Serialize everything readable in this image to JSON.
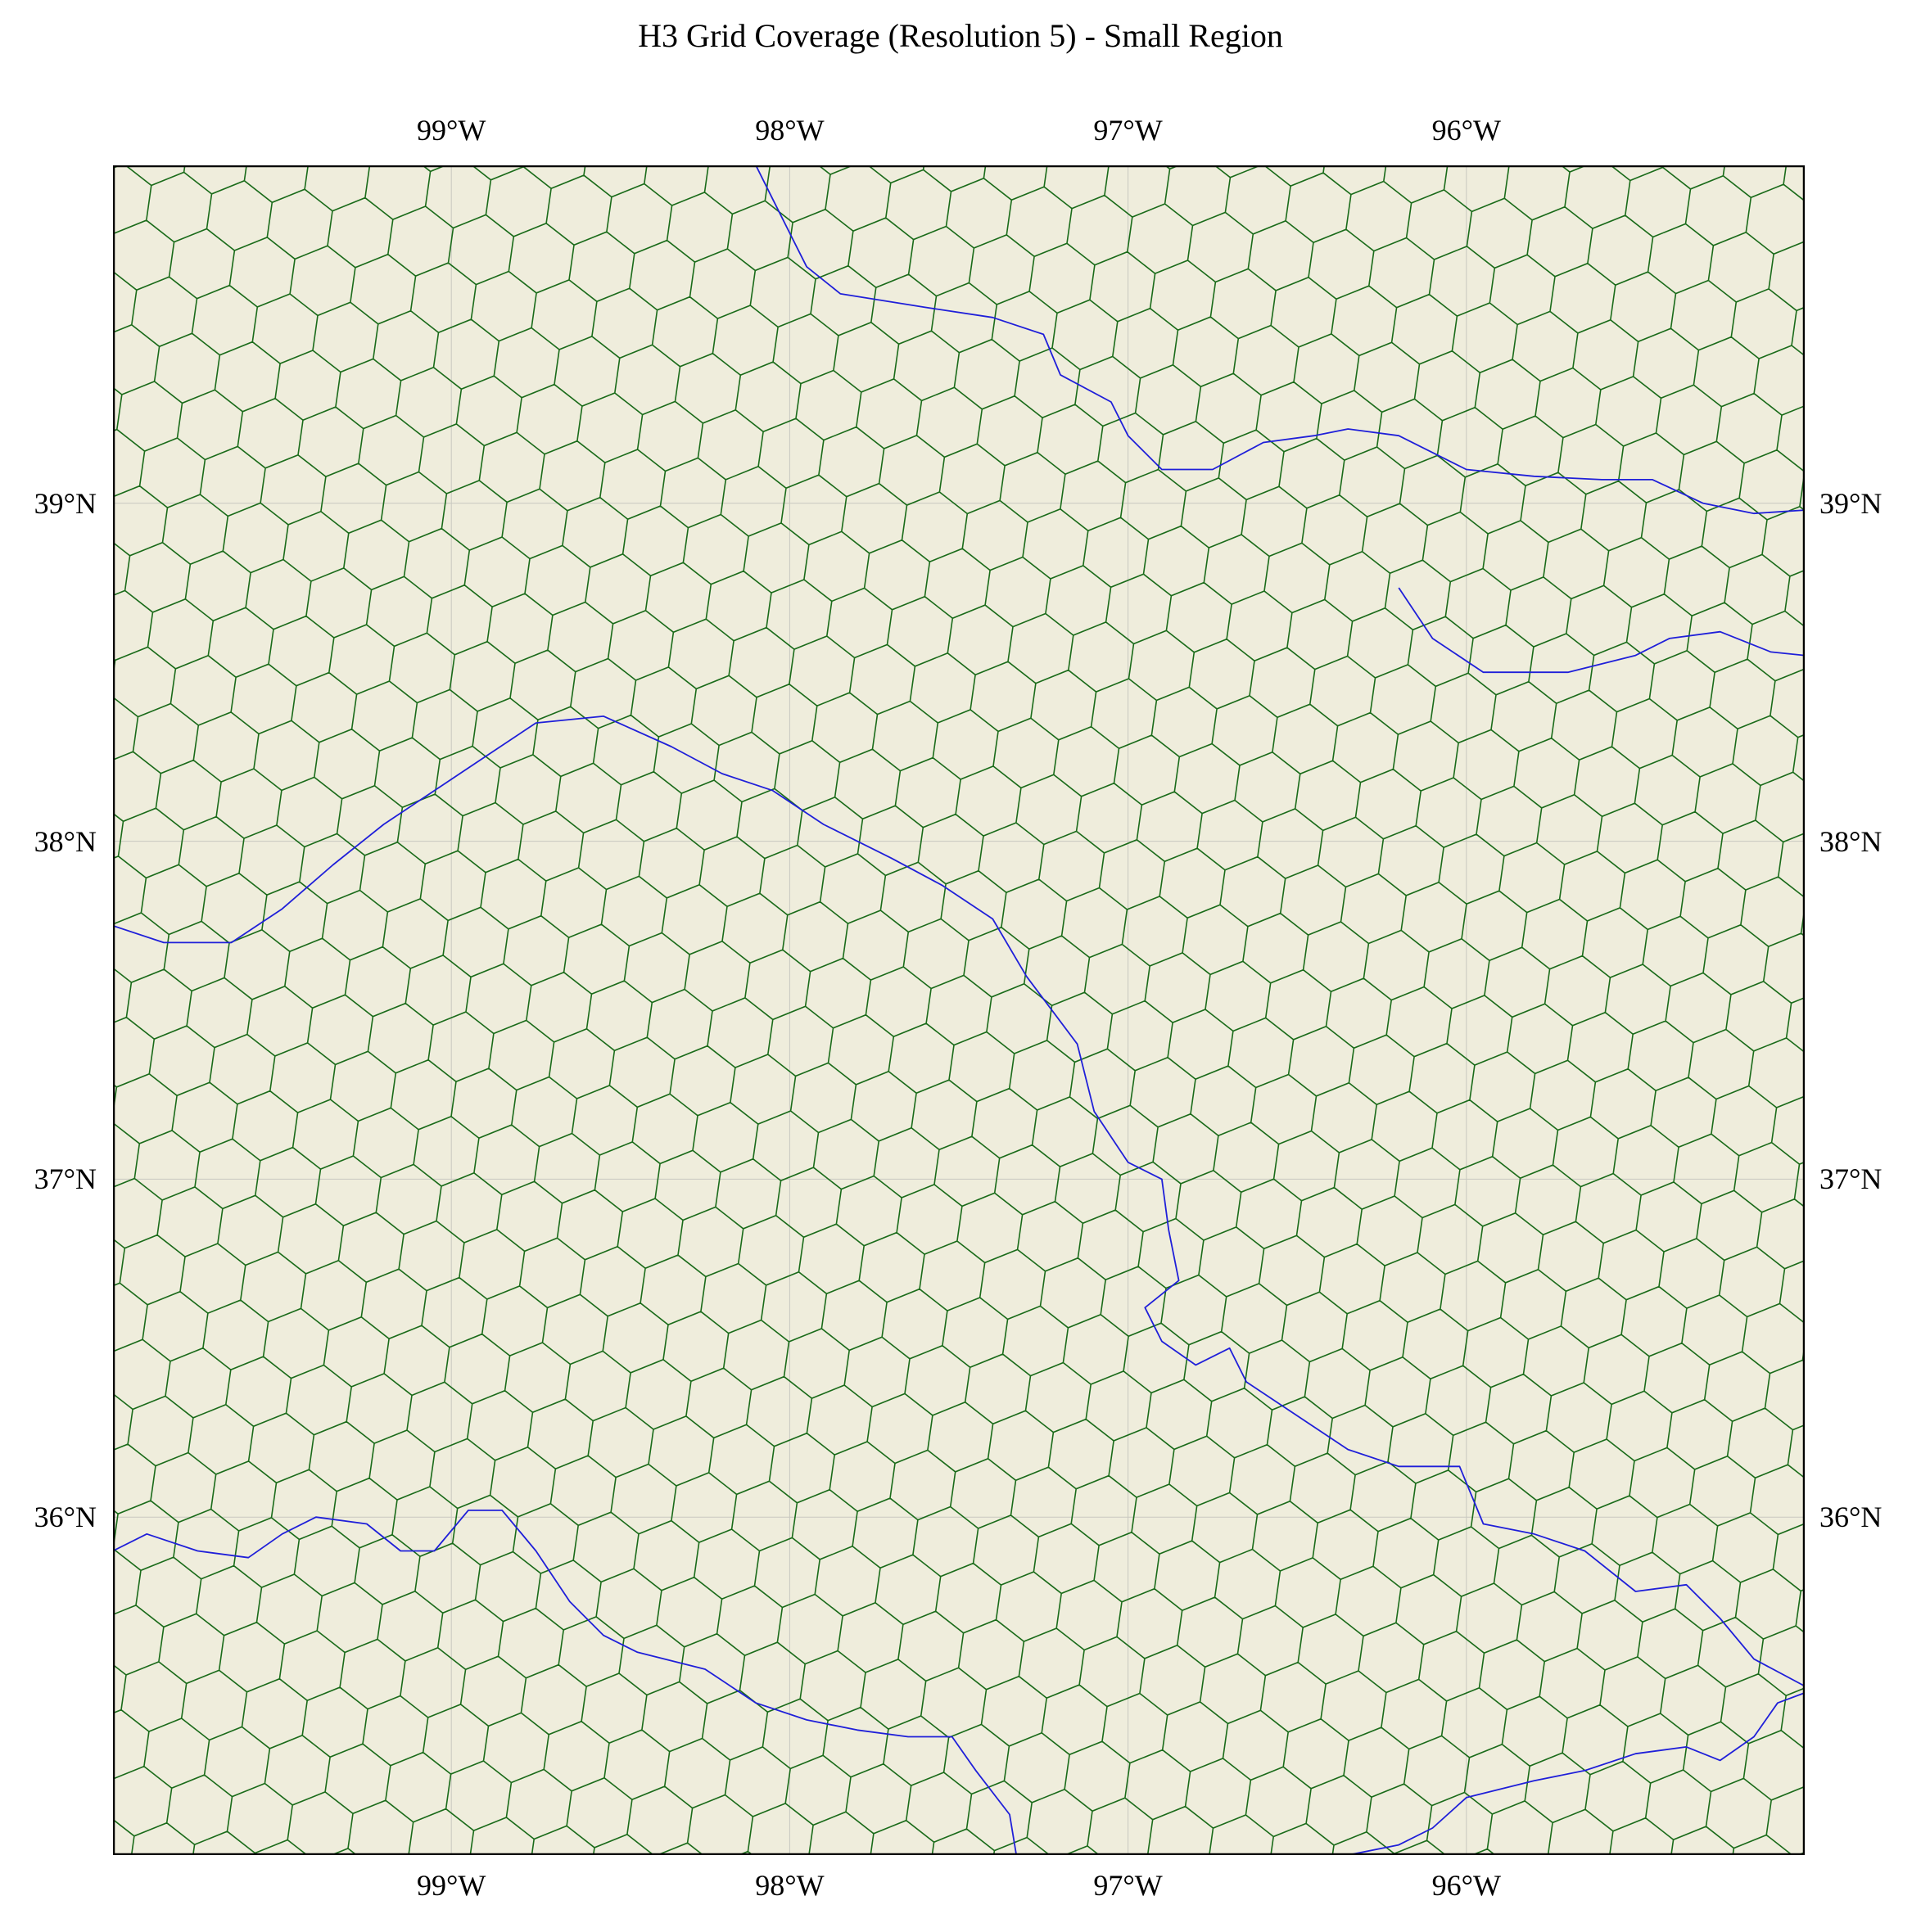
{
  "title": "H3 Grid Coverage (Resolution 5) - Small Region",
  "map": {
    "projection": "PlateCarree",
    "extent": {
      "lon_min": -100.0,
      "lon_max": -95.0,
      "lat_min": 35.0,
      "lat_max": 40.0
    },
    "colors": {
      "land": "#efeddc",
      "hex_edge": "#1a6b1a",
      "river": "#1f1fd9",
      "gridline": "#c8c8c0",
      "frame": "#000000"
    },
    "gridlines": true,
    "h3_resolution": 5,
    "lon_ticks": [
      {
        "lon": -99,
        "label": "99°W"
      },
      {
        "lon": -98,
        "label": "98°W"
      },
      {
        "lon": -97,
        "label": "97°W"
      },
      {
        "lon": -96,
        "label": "96°W"
      }
    ],
    "lat_ticks": [
      {
        "lat": 39,
        "label": "39°N"
      },
      {
        "lat": 38,
        "label": "38°N"
      },
      {
        "lat": 37,
        "label": "37°N"
      },
      {
        "lat": 36,
        "label": "36°N"
      }
    ],
    "rivers": [
      {
        "points": [
          [
            -98.1,
            40.0
          ],
          [
            -98.05,
            39.9
          ],
          [
            -98.0,
            39.8
          ],
          [
            -97.95,
            39.7
          ],
          [
            -97.85,
            39.62
          ],
          [
            -97.6,
            39.58
          ],
          [
            -97.4,
            39.55
          ],
          [
            -97.25,
            39.5
          ],
          [
            -97.2,
            39.38
          ],
          [
            -97.05,
            39.3
          ],
          [
            -97.0,
            39.2
          ],
          [
            -96.9,
            39.1
          ],
          [
            -96.75,
            39.1
          ],
          [
            -96.6,
            39.18
          ],
          [
            -96.45,
            39.2
          ],
          [
            -96.35,
            39.22
          ],
          [
            -96.2,
            39.2
          ],
          [
            -96.0,
            39.1
          ],
          [
            -95.8,
            39.08
          ],
          [
            -95.6,
            39.07
          ],
          [
            -95.45,
            39.07
          ],
          [
            -95.3,
            39.0
          ],
          [
            -95.15,
            38.97
          ],
          [
            -95.0,
            38.98
          ]
        ]
      },
      {
        "points": [
          [
            -96.2,
            38.75
          ],
          [
            -96.1,
            38.6
          ],
          [
            -95.95,
            38.5
          ],
          [
            -95.7,
            38.5
          ],
          [
            -95.5,
            38.55
          ],
          [
            -95.4,
            38.6
          ],
          [
            -95.25,
            38.62
          ],
          [
            -95.1,
            38.56
          ],
          [
            -95.0,
            38.55
          ]
        ]
      },
      {
        "points": [
          [
            -100.0,
            37.75
          ],
          [
            -99.85,
            37.7
          ],
          [
            -99.65,
            37.7
          ],
          [
            -99.5,
            37.8
          ],
          [
            -99.35,
            37.93
          ],
          [
            -99.2,
            38.05
          ],
          [
            -99.05,
            38.15
          ],
          [
            -98.9,
            38.25
          ],
          [
            -98.75,
            38.35
          ],
          [
            -98.55,
            38.37
          ],
          [
            -98.35,
            38.28
          ],
          [
            -98.2,
            38.2
          ],
          [
            -98.05,
            38.15
          ],
          [
            -97.9,
            38.05
          ],
          [
            -97.7,
            37.95
          ],
          [
            -97.55,
            37.87
          ],
          [
            -97.4,
            37.77
          ],
          [
            -97.3,
            37.6
          ],
          [
            -97.15,
            37.4
          ],
          [
            -97.1,
            37.2
          ],
          [
            -97.0,
            37.05
          ],
          [
            -96.9,
            37.0
          ],
          [
            -96.88,
            36.85
          ],
          [
            -96.85,
            36.7
          ],
          [
            -96.95,
            36.62
          ],
          [
            -96.9,
            36.52
          ],
          [
            -96.8,
            36.45
          ],
          [
            -96.7,
            36.5
          ],
          [
            -96.65,
            36.4
          ],
          [
            -96.5,
            36.3
          ],
          [
            -96.35,
            36.2
          ],
          [
            -96.2,
            36.15
          ],
          [
            -96.02,
            36.15
          ],
          [
            -95.95,
            35.98
          ],
          [
            -95.8,
            35.95
          ],
          [
            -95.65,
            35.9
          ],
          [
            -95.5,
            35.78
          ],
          [
            -95.35,
            35.8
          ],
          [
            -95.25,
            35.7
          ],
          [
            -95.15,
            35.58
          ],
          [
            -95.0,
            35.5
          ]
        ]
      },
      {
        "points": [
          [
            -100.0,
            35.9
          ],
          [
            -99.9,
            35.95
          ],
          [
            -99.75,
            35.9
          ],
          [
            -99.6,
            35.88
          ],
          [
            -99.5,
            35.95
          ],
          [
            -99.4,
            36.0
          ],
          [
            -99.25,
            35.98
          ],
          [
            -99.15,
            35.9
          ],
          [
            -99.05,
            35.9
          ],
          [
            -98.95,
            36.02
          ],
          [
            -98.85,
            36.02
          ],
          [
            -98.75,
            35.9
          ],
          [
            -98.65,
            35.75
          ],
          [
            -98.55,
            35.65
          ],
          [
            -98.45,
            35.6
          ],
          [
            -98.25,
            35.55
          ],
          [
            -98.1,
            35.45
          ],
          [
            -97.95,
            35.4
          ],
          [
            -97.8,
            35.37
          ],
          [
            -97.65,
            35.35
          ],
          [
            -97.52,
            35.35
          ],
          [
            -97.45,
            35.25
          ],
          [
            -97.35,
            35.12
          ],
          [
            -97.33,
            35.0
          ]
        ]
      },
      {
        "points": [
          [
            -96.35,
            35.0
          ],
          [
            -96.2,
            35.03
          ],
          [
            -96.1,
            35.08
          ],
          [
            -96.0,
            35.17
          ],
          [
            -95.8,
            35.22
          ],
          [
            -95.65,
            35.25
          ],
          [
            -95.5,
            35.3
          ],
          [
            -95.35,
            35.32
          ],
          [
            -95.25,
            35.28
          ],
          [
            -95.15,
            35.35
          ],
          [
            -95.08,
            35.45
          ],
          [
            -95.0,
            35.48
          ]
        ]
      }
    ]
  }
}
